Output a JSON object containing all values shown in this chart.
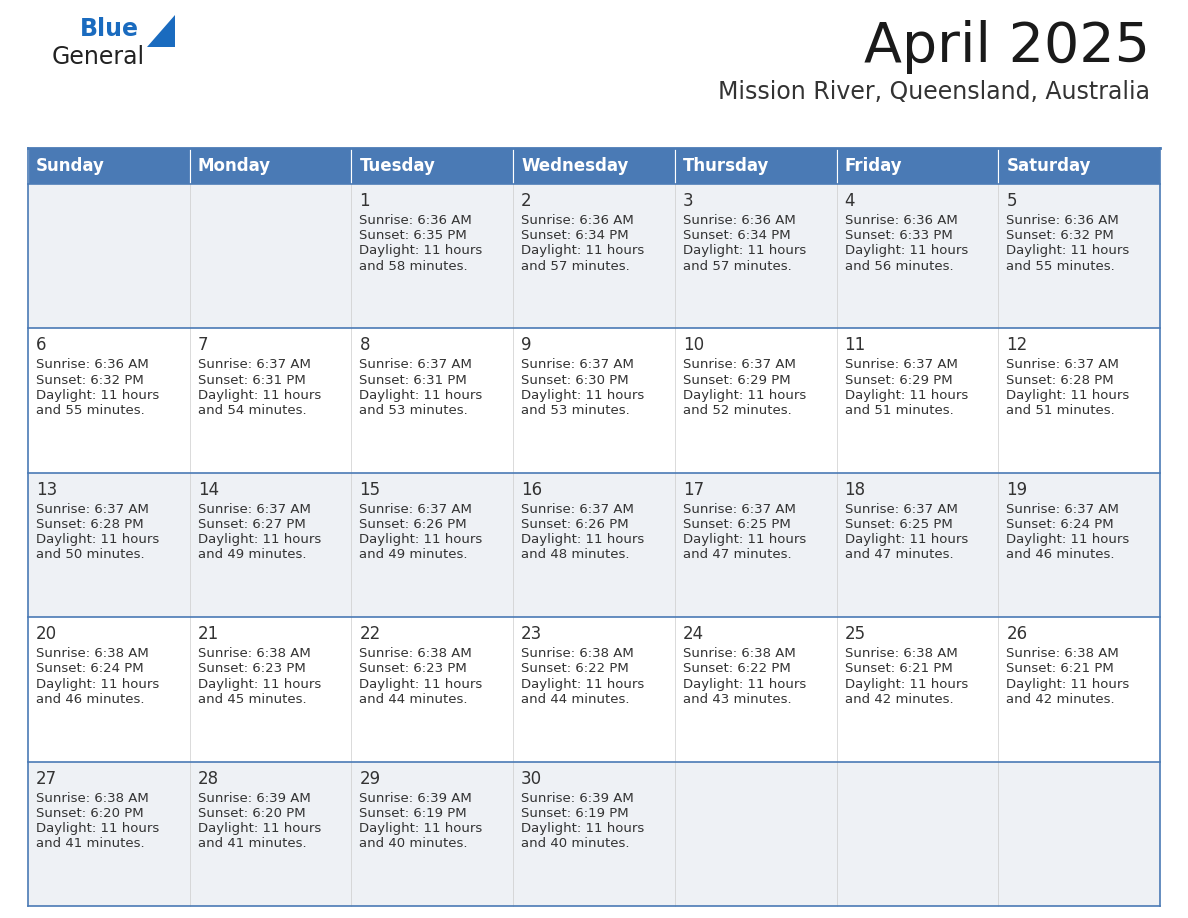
{
  "title": "April 2025",
  "subtitle": "Mission River, Queensland, Australia",
  "days_of_week": [
    "Sunday",
    "Monday",
    "Tuesday",
    "Wednesday",
    "Thursday",
    "Friday",
    "Saturday"
  ],
  "header_bg": "#4a7ab5",
  "header_text": "#ffffff",
  "cell_bg_odd": "#eef1f5",
  "cell_bg_even": "#ffffff",
  "cell_text": "#333333",
  "border_color": "#4a7ab5",
  "title_color": "#1a1a1a",
  "subtitle_color": "#333333",
  "generalblue_main": "#222222",
  "generalblue_color": "#1a6bbf",
  "triangle_color": "#1a6bbf",
  "calendar": [
    [
      null,
      null,
      {
        "day": 1,
        "sunrise": "6:36 AM",
        "sunset": "6:35 PM",
        "daylight": "11 hours",
        "daylight2": "and 58 minutes."
      },
      {
        "day": 2,
        "sunrise": "6:36 AM",
        "sunset": "6:34 PM",
        "daylight": "11 hours",
        "daylight2": "and 57 minutes."
      },
      {
        "day": 3,
        "sunrise": "6:36 AM",
        "sunset": "6:34 PM",
        "daylight": "11 hours",
        "daylight2": "and 57 minutes."
      },
      {
        "day": 4,
        "sunrise": "6:36 AM",
        "sunset": "6:33 PM",
        "daylight": "11 hours",
        "daylight2": "and 56 minutes."
      },
      {
        "day": 5,
        "sunrise": "6:36 AM",
        "sunset": "6:32 PM",
        "daylight": "11 hours",
        "daylight2": "and 55 minutes."
      }
    ],
    [
      {
        "day": 6,
        "sunrise": "6:36 AM",
        "sunset": "6:32 PM",
        "daylight": "11 hours",
        "daylight2": "and 55 minutes."
      },
      {
        "day": 7,
        "sunrise": "6:37 AM",
        "sunset": "6:31 PM",
        "daylight": "11 hours",
        "daylight2": "and 54 minutes."
      },
      {
        "day": 8,
        "sunrise": "6:37 AM",
        "sunset": "6:31 PM",
        "daylight": "11 hours",
        "daylight2": "and 53 minutes."
      },
      {
        "day": 9,
        "sunrise": "6:37 AM",
        "sunset": "6:30 PM",
        "daylight": "11 hours",
        "daylight2": "and 53 minutes."
      },
      {
        "day": 10,
        "sunrise": "6:37 AM",
        "sunset": "6:29 PM",
        "daylight": "11 hours",
        "daylight2": "and 52 minutes."
      },
      {
        "day": 11,
        "sunrise": "6:37 AM",
        "sunset": "6:29 PM",
        "daylight": "11 hours",
        "daylight2": "and 51 minutes."
      },
      {
        "day": 12,
        "sunrise": "6:37 AM",
        "sunset": "6:28 PM",
        "daylight": "11 hours",
        "daylight2": "and 51 minutes."
      }
    ],
    [
      {
        "day": 13,
        "sunrise": "6:37 AM",
        "sunset": "6:28 PM",
        "daylight": "11 hours",
        "daylight2": "and 50 minutes."
      },
      {
        "day": 14,
        "sunrise": "6:37 AM",
        "sunset": "6:27 PM",
        "daylight": "11 hours",
        "daylight2": "and 49 minutes."
      },
      {
        "day": 15,
        "sunrise": "6:37 AM",
        "sunset": "6:26 PM",
        "daylight": "11 hours",
        "daylight2": "and 49 minutes."
      },
      {
        "day": 16,
        "sunrise": "6:37 AM",
        "sunset": "6:26 PM",
        "daylight": "11 hours",
        "daylight2": "and 48 minutes."
      },
      {
        "day": 17,
        "sunrise": "6:37 AM",
        "sunset": "6:25 PM",
        "daylight": "11 hours",
        "daylight2": "and 47 minutes."
      },
      {
        "day": 18,
        "sunrise": "6:37 AM",
        "sunset": "6:25 PM",
        "daylight": "11 hours",
        "daylight2": "and 47 minutes."
      },
      {
        "day": 19,
        "sunrise": "6:37 AM",
        "sunset": "6:24 PM",
        "daylight": "11 hours",
        "daylight2": "and 46 minutes."
      }
    ],
    [
      {
        "day": 20,
        "sunrise": "6:38 AM",
        "sunset": "6:24 PM",
        "daylight": "11 hours",
        "daylight2": "and 46 minutes."
      },
      {
        "day": 21,
        "sunrise": "6:38 AM",
        "sunset": "6:23 PM",
        "daylight": "11 hours",
        "daylight2": "and 45 minutes."
      },
      {
        "day": 22,
        "sunrise": "6:38 AM",
        "sunset": "6:23 PM",
        "daylight": "11 hours",
        "daylight2": "and 44 minutes."
      },
      {
        "day": 23,
        "sunrise": "6:38 AM",
        "sunset": "6:22 PM",
        "daylight": "11 hours",
        "daylight2": "and 44 minutes."
      },
      {
        "day": 24,
        "sunrise": "6:38 AM",
        "sunset": "6:22 PM",
        "daylight": "11 hours",
        "daylight2": "and 43 minutes."
      },
      {
        "day": 25,
        "sunrise": "6:38 AM",
        "sunset": "6:21 PM",
        "daylight": "11 hours",
        "daylight2": "and 42 minutes."
      },
      {
        "day": 26,
        "sunrise": "6:38 AM",
        "sunset": "6:21 PM",
        "daylight": "11 hours",
        "daylight2": "and 42 minutes."
      }
    ],
    [
      {
        "day": 27,
        "sunrise": "6:38 AM",
        "sunset": "6:20 PM",
        "daylight": "11 hours",
        "daylight2": "and 41 minutes."
      },
      {
        "day": 28,
        "sunrise": "6:39 AM",
        "sunset": "6:20 PM",
        "daylight": "11 hours",
        "daylight2": "and 41 minutes."
      },
      {
        "day": 29,
        "sunrise": "6:39 AM",
        "sunset": "6:19 PM",
        "daylight": "11 hours",
        "daylight2": "and 40 minutes."
      },
      {
        "day": 30,
        "sunrise": "6:39 AM",
        "sunset": "6:19 PM",
        "daylight": "11 hours",
        "daylight2": "and 40 minutes."
      },
      null,
      null,
      null
    ]
  ]
}
